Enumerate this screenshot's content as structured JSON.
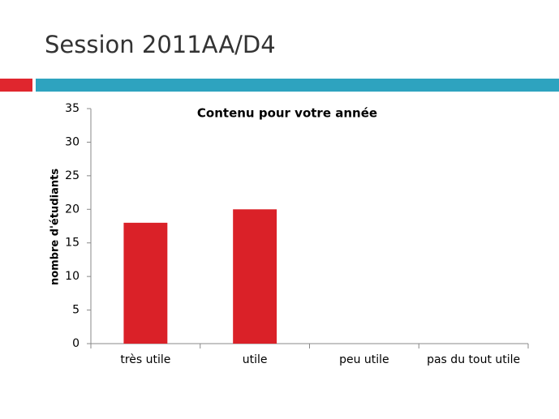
{
  "slide_title": "Session 2011AA/D4",
  "chart_data": {
    "type": "bar",
    "title": "Contenu pour votre année",
    "y_label": "nombre d'étudiants",
    "categories": [
      "très utile",
      "utile",
      "peu utile",
      "pas du tout utile"
    ],
    "values": [
      18,
      20,
      0,
      0
    ],
    "color": "#da2128",
    "ylim": [
      0,
      35
    ],
    "yticks": [
      0,
      5,
      10,
      15,
      20,
      25,
      30,
      35
    ]
  }
}
